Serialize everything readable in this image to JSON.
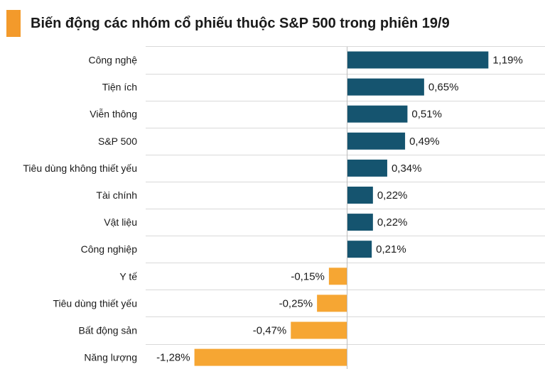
{
  "title": "Biến động các nhóm cổ phiếu thuộc S&P 500 trong phiên 19/9",
  "colors": {
    "accent": "#F39A2B",
    "positive": "#15546F",
    "negative": "#F6A633",
    "grid": "#d9d9d9"
  },
  "chart_data": {
    "type": "bar",
    "orientation": "horizontal",
    "title": "Biến động các nhóm cổ phiếu thuộc S&P 500 trong phiên 19/9",
    "categories": [
      "Công nghệ",
      "Tiện ích",
      "Viễn thông",
      "S&P 500",
      "Tiêu dùng không thiết yếu",
      "Tài chính",
      "Vật liệu",
      "Công nghiệp",
      "Y tế",
      "Tiêu dùng thiết yếu",
      "Bất động sản",
      "Năng lượng"
    ],
    "values": [
      1.19,
      0.65,
      0.51,
      0.49,
      0.34,
      0.22,
      0.22,
      0.21,
      -0.15,
      -0.25,
      -0.47,
      -1.28
    ],
    "value_labels": [
      "1,19%",
      "0,65%",
      "0,51%",
      "0,49%",
      "0,34%",
      "0,22%",
      "0,22%",
      "0,21%",
      "-0,15%",
      "-0,25%",
      "-0,47%",
      "-1,28%"
    ],
    "xlim": [
      -1.28,
      1.19
    ],
    "grid": true
  }
}
